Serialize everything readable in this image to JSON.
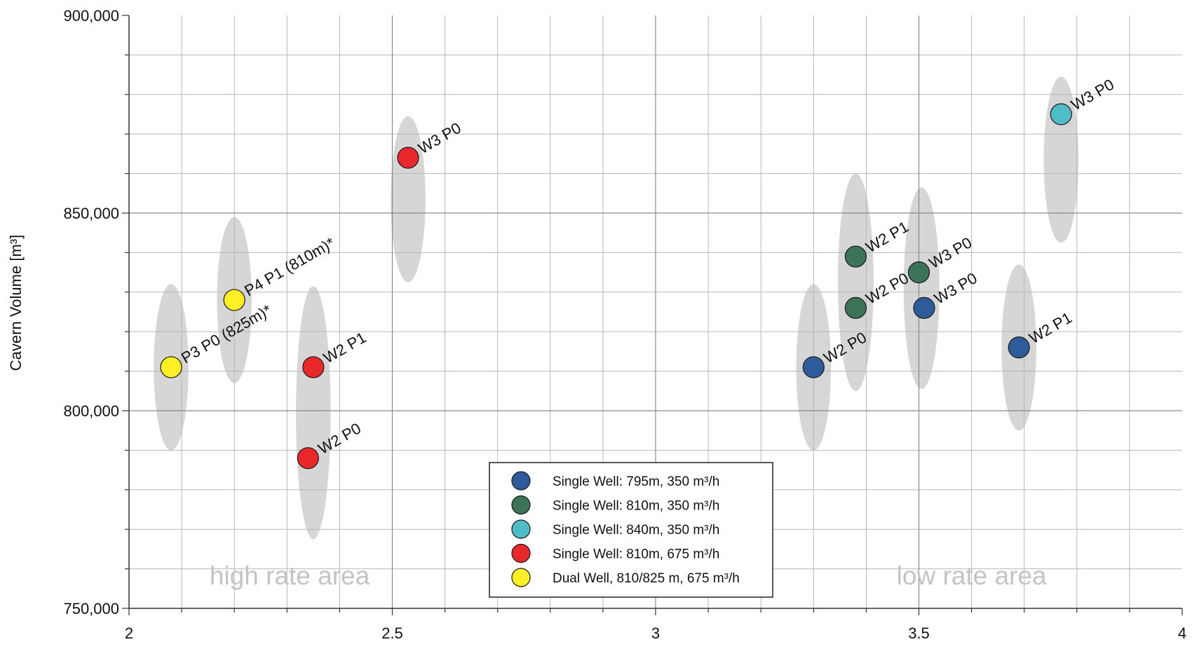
{
  "chart_data": {
    "type": "scatter",
    "title": "",
    "xlabel": "",
    "ylabel": "Cavern Volume [m³]",
    "xlim": [
      2,
      4
    ],
    "ylim": [
      750000,
      900000
    ],
    "x_ticks": [
      2,
      2.5,
      3,
      3.5,
      4
    ],
    "x_tick_labels": [
      "2",
      "2.5",
      "3",
      "3.5",
      "4"
    ],
    "y_ticks": [
      750000,
      800000,
      850000,
      900000
    ],
    "y_tick_labels": [
      "750,000",
      "800,000",
      "850,000",
      "900,000"
    ],
    "grid": true,
    "legend_position": "bottom-center",
    "series": [
      {
        "name": "Single Well: 795m, 350 m³/h",
        "color": "#2e5c9a",
        "points": [
          {
            "x": 3.3,
            "y": 811000,
            "label": "W2 P0",
            "ellipse": {
              "x": 3.3,
              "y": 811000,
              "half_width": 0.033,
              "half_height": 21000
            }
          },
          {
            "x": 3.51,
            "y": 826000,
            "label": "W3 P0",
            "ellipse": null
          },
          {
            "x": 3.69,
            "y": 816000,
            "label": "W2 P1",
            "ellipse": {
              "x": 3.69,
              "y": 816000,
              "half_width": 0.033,
              "half_height": 21000
            }
          }
        ]
      },
      {
        "name": "Single Well: 810m, 350 m³/h",
        "color": "#3d7356",
        "points": [
          {
            "x": 3.38,
            "y": 826000,
            "label": "W2 P0",
            "ellipse": {
              "x": 3.38,
              "y": 832500,
              "half_width": 0.034,
              "half_height": 27500
            }
          },
          {
            "x": 3.38,
            "y": 839000,
            "label": "W2 P1",
            "ellipse": null
          },
          {
            "x": 3.5,
            "y": 835000,
            "label": "W3 P0",
            "ellipse": {
              "x": 3.505,
              "y": 831000,
              "half_width": 0.034,
              "half_height": 25500
            }
          }
        ]
      },
      {
        "name": "Single Well: 840m, 350 m³/h",
        "color": "#4fbcc8",
        "points": [
          {
            "x": 3.77,
            "y": 875000,
            "label": "W3 P0",
            "ellipse": {
              "x": 3.77,
              "y": 863500,
              "half_width": 0.033,
              "half_height": 21000
            }
          }
        ]
      },
      {
        "name": "Single Well: 810m, 675 m³/h",
        "color": "#e8282b",
        "points": [
          {
            "x": 2.35,
            "y": 811000,
            "label": "W2 P1",
            "ellipse": {
              "x": 2.35,
              "y": 799500,
              "half_width": 0.033,
              "half_height": 32000
            }
          },
          {
            "x": 2.34,
            "y": 788000,
            "label": "W2 P0",
            "ellipse": null
          },
          {
            "x": 2.53,
            "y": 864000,
            "label": "W3 P0",
            "ellipse": {
              "x": 2.53,
              "y": 853500,
              "half_width": 0.033,
              "half_height": 21000
            }
          }
        ]
      },
      {
        "name": "Dual Well, 810/825 m, 675 m³/h",
        "color": "#ffef24",
        "points": [
          {
            "x": 2.08,
            "y": 811000,
            "label": "P3  P0 (825m)*",
            "ellipse": {
              "x": 2.08,
              "y": 811000,
              "half_width": 0.033,
              "half_height": 21000
            }
          },
          {
            "x": 2.2,
            "y": 828000,
            "label": "P4  P1 (810m)*",
            "ellipse": {
              "x": 2.2,
              "y": 828000,
              "half_width": 0.033,
              "half_height": 21000
            }
          }
        ]
      }
    ],
    "annotations": [
      {
        "text": "high rate area",
        "x": 2.305,
        "y": 756000
      },
      {
        "text": "low rate area",
        "x": 3.6,
        "y": 756000
      }
    ]
  }
}
